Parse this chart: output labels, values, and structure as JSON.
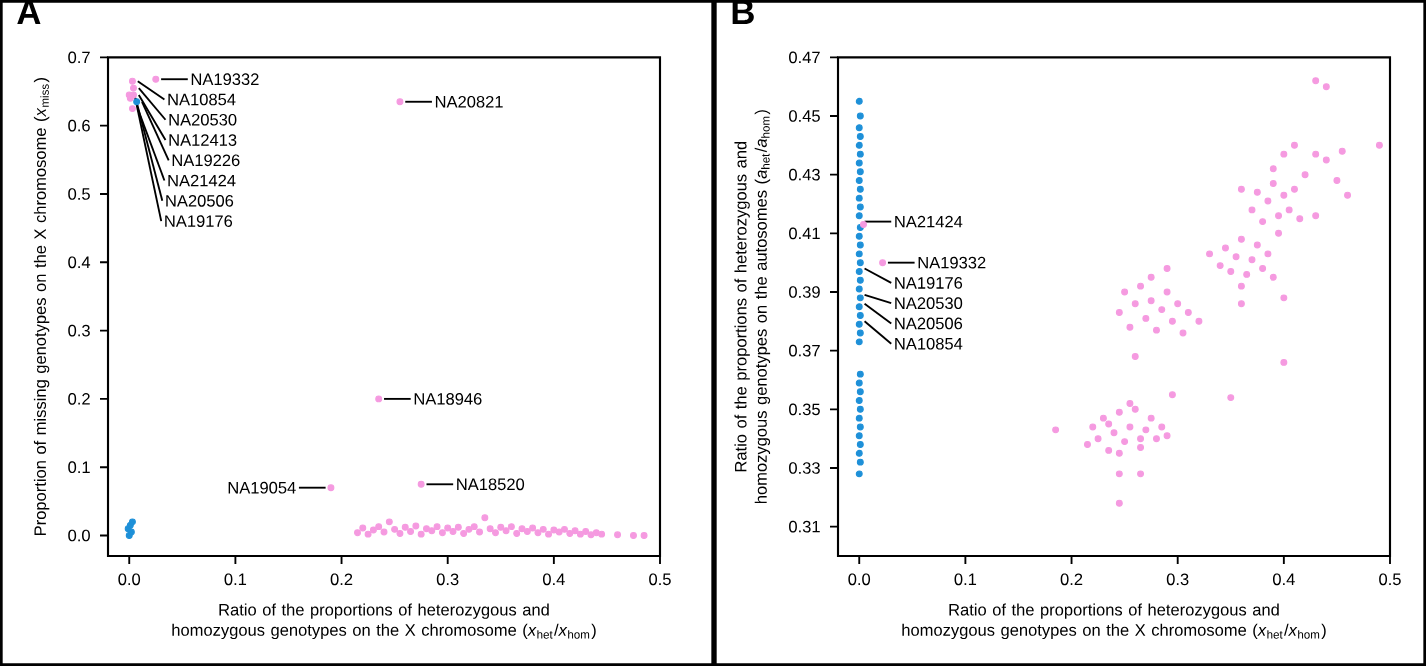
{
  "chart_data": [
    {
      "type": "scatter",
      "title": "A",
      "xlabel": "Ratio of the proportions of heterozygous and homozygous genotypes on the X chromosome (*x*$_{het}$/*x*$_{hom}$)",
      "ylabel": "Proportion of missing genotypes on the X chromosome (*x*$_{miss}$)",
      "xlim": [
        -0.02,
        0.5
      ],
      "ylim": [
        -0.03,
        0.7
      ],
      "xticks": [
        {
          "value": 0,
          "label": "0.0"
        },
        0.1,
        0.2,
        0.3,
        0.4,
        0.5
      ],
      "yticks": [
        {
          "value": 0,
          "label": "0.0"
        },
        0.1,
        0.2,
        0.3,
        0.4,
        0.5,
        0.6,
        0.7
      ],
      "series": [
        {
          "color": "#1e90d8",
          "x": [
            0.0,
            0.002,
            -0.001,
            0.001,
            0.003,
            0.007
          ],
          "values": [
            0.0,
            0.005,
            0.01,
            0.015,
            0.02,
            0.635
          ]
        },
        {
          "color": "#f59ae0",
          "x": [
            0.215,
            0.22,
            0.225,
            0.23,
            0.235,
            0.24,
            0.245,
            0.25,
            0.255,
            0.26,
            0.265,
            0.27,
            0.275,
            0.28,
            0.285,
            0.29,
            0.295,
            0.3,
            0.305,
            0.31,
            0.315,
            0.32,
            0.325,
            0.33,
            0.335,
            0.34,
            0.345,
            0.35,
            0.355,
            0.36,
            0.365,
            0.37,
            0.375,
            0.38,
            0.385,
            0.39,
            0.395,
            0.4,
            0.405,
            0.41,
            0.415,
            0.42,
            0.425,
            0.43,
            0.435,
            0.44,
            0.445,
            0.46,
            0.475,
            0.485,
            0.255,
            0.235,
            0.19,
            0.275,
            0.025,
            0.003,
            0.004,
            0.004,
            0.003,
            0.001,
            0.0
          ],
          "values": [
            0.004,
            0.011,
            0.002,
            0.008,
            0.013,
            0.005,
            0.02,
            0.009,
            0.003,
            0.012,
            0.006,
            0.014,
            0.002,
            0.01,
            0.007,
            0.013,
            0.004,
            0.011,
            0.006,
            0.012,
            0.003,
            0.009,
            0.013,
            0.005,
            0.026,
            0.01,
            0.004,
            0.012,
            0.007,
            0.013,
            0.003,
            0.01,
            0.006,
            0.011,
            0.004,
            0.009,
            0.002,
            0.008,
            0.005,
            0.009,
            0.003,
            0.007,
            0.002,
            0.006,
            0.001,
            0.004,
            0.002,
            0.001,
            0.0,
            0.0,
            0.635,
            0.2,
            0.07,
            0.075,
            0.668,
            0.665,
            0.655,
            0.645,
            0.625,
            0.64,
            0.645
          ]
        }
      ],
      "annotations": [
        {
          "text": "NA19332",
          "x": 0.025,
          "y": 0.668
        },
        {
          "text": "NA10854",
          "x": 0.003,
          "y": 0.665
        },
        {
          "text": "NA20530",
          "x": 0.004,
          "y": 0.655
        },
        {
          "text": "NA12413",
          "x": 0.004,
          "y": 0.645
        },
        {
          "text": "NA19226",
          "x": 0.007,
          "y": 0.635
        },
        {
          "text": "NA21424",
          "x": 0.003,
          "y": 0.625
        },
        {
          "text": "NA20506",
          "x": 0.001,
          "y": 0.64
        },
        {
          "text": "NA19176",
          "x": 0.0,
          "y": 0.645
        },
        {
          "text": "NA20821",
          "x": 0.255,
          "y": 0.635
        },
        {
          "text": "NA18946",
          "x": 0.235,
          "y": 0.2
        },
        {
          "text": "NA19054",
          "x": 0.19,
          "y": 0.07
        },
        {
          "text": "NA18520",
          "x": 0.275,
          "y": 0.075
        }
      ]
    },
    {
      "type": "scatter",
      "title": "B",
      "xlabel": "Ratio of the proportions of heterozygous and homozygous genotypes on the X chromosome (*x*$_{het}$/*x*$_{hom}$)",
      "ylabel": "Ratio of the proportions of heterozygous and homozygous genotypes on the autosomes (*a*$_{het}$/*a*$_{hom}$)",
      "xlim": [
        -0.02,
        0.5
      ],
      "ylim": [
        0.3,
        0.47
      ],
      "xticks": [
        {
          "value": 0,
          "label": "0.0"
        },
        0.1,
        0.2,
        0.3,
        0.4,
        0.5
      ],
      "yticks": [
        0.31,
        0.33,
        0.35,
        0.37,
        0.39,
        0.41,
        0.43,
        0.45,
        0.47
      ],
      "series": [
        {
          "color": "#1e90d8",
          "x": [
            0.0,
            0.001,
            0.0,
            0.001,
            0.0,
            0.001,
            0.0,
            0.001,
            0.0,
            0.001,
            0.0,
            0.001,
            0.0,
            0.001,
            0.0,
            0.001,
            0.0,
            0.001,
            0.0,
            0.001,
            0.0,
            0.001,
            0.0,
            0.001,
            0.0,
            0.001,
            0.0,
            0.001,
            0.0,
            0.001,
            0.0,
            0.001,
            0.0,
            0.001,
            0.0,
            0.001,
            0.0,
            0.001,
            0.0
          ],
          "values": [
            0.455,
            0.45,
            0.446,
            0.443,
            0.44,
            0.437,
            0.434,
            0.431,
            0.428,
            0.425,
            0.422,
            0.419,
            0.416,
            0.412,
            0.409,
            0.406,
            0.403,
            0.4,
            0.397,
            0.394,
            0.391,
            0.388,
            0.385,
            0.382,
            0.379,
            0.376,
            0.373,
            0.362,
            0.359,
            0.356,
            0.353,
            0.35,
            0.347,
            0.344,
            0.341,
            0.338,
            0.335,
            0.332,
            0.328
          ]
        },
        {
          "color": "#f59ae0",
          "x": [
            0.215,
            0.22,
            0.225,
            0.23,
            0.235,
            0.24,
            0.245,
            0.25,
            0.255,
            0.26,
            0.265,
            0.27,
            0.275,
            0.28,
            0.285,
            0.29,
            0.245,
            0.255,
            0.235,
            0.265,
            0.185,
            0.245,
            0.245,
            0.265,
            0.26,
            0.295,
            0.35,
            0.4,
            0.245,
            0.25,
            0.255,
            0.26,
            0.265,
            0.27,
            0.275,
            0.28,
            0.285,
            0.29,
            0.295,
            0.3,
            0.305,
            0.31,
            0.275,
            0.29,
            0.32,
            0.33,
            0.34,
            0.345,
            0.35,
            0.355,
            0.36,
            0.365,
            0.37,
            0.375,
            0.38,
            0.385,
            0.39,
            0.36,
            0.395,
            0.36,
            0.4,
            0.37,
            0.375,
            0.38,
            0.385,
            0.39,
            0.395,
            0.4,
            0.405,
            0.41,
            0.415,
            0.39,
            0.4,
            0.41,
            0.42,
            0.43,
            0.44,
            0.455,
            0.43,
            0.44,
            0.49,
            0.46,
            0.43,
            0.36,
            0.45,
            0.022,
            0.004
          ],
          "values": [
            0.338,
            0.344,
            0.34,
            0.347,
            0.336,
            0.342,
            0.349,
            0.339,
            0.344,
            0.35,
            0.337,
            0.343,
            0.347,
            0.34,
            0.344,
            0.341,
            0.335,
            0.352,
            0.345,
            0.34,
            0.343,
            0.318,
            0.328,
            0.328,
            0.368,
            0.355,
            0.354,
            0.366,
            0.383,
            0.39,
            0.378,
            0.386,
            0.392,
            0.381,
            0.387,
            0.377,
            0.384,
            0.39,
            0.38,
            0.386,
            0.376,
            0.383,
            0.395,
            0.398,
            0.38,
            0.403,
            0.399,
            0.405,
            0.397,
            0.402,
            0.408,
            0.396,
            0.401,
            0.406,
            0.398,
            0.403,
            0.395,
            0.392,
            0.41,
            0.386,
            0.388,
            0.418,
            0.424,
            0.414,
            0.421,
            0.427,
            0.416,
            0.423,
            0.418,
            0.425,
            0.415,
            0.432,
            0.437,
            0.44,
            0.43,
            0.437,
            0.435,
            0.438,
            0.462,
            0.46,
            0.44,
            0.423,
            0.416,
            0.425,
            0.428,
            0.4,
            0.413
          ]
        }
      ],
      "annotations": [
        {
          "text": "NA21424",
          "x": 0.0,
          "y": 0.414
        },
        {
          "text": "NA19332",
          "x": 0.022,
          "y": 0.4
        },
        {
          "text": "NA19176",
          "x": 0.0,
          "y": 0.398
        },
        {
          "text": "NA20530",
          "x": 0.0,
          "y": 0.389
        },
        {
          "text": "NA20506",
          "x": 0.0,
          "y": 0.386
        },
        {
          "text": "NA10854",
          "x": 0.0,
          "y": 0.38
        }
      ]
    }
  ]
}
